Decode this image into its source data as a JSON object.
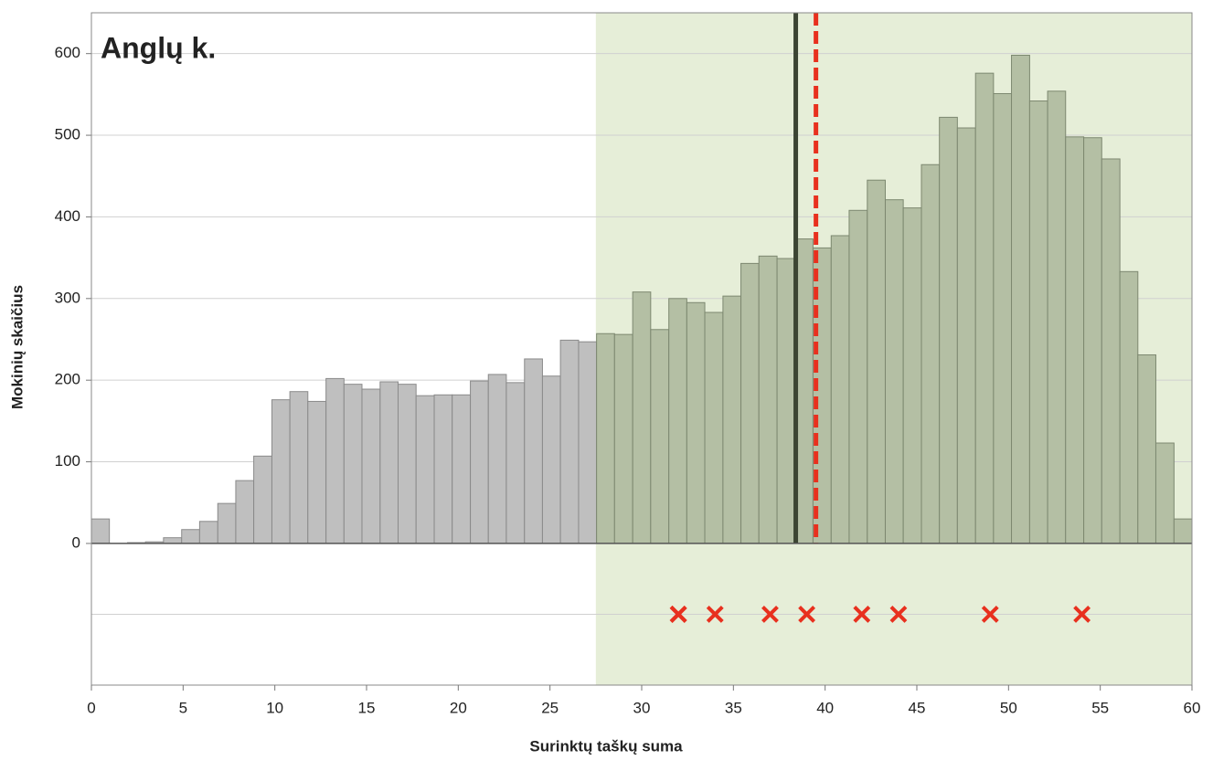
{
  "chart_data": {
    "type": "histogram",
    "title": "Anglų k.",
    "x_label": "Surinktų taškų suma",
    "y_label": "Mokinių skaičius",
    "bins": [
      0,
      0.98,
      1.97,
      2.95,
      3.93,
      4.92,
      5.9,
      6.89,
      7.87,
      8.85,
      9.84,
      10.82,
      11.8,
      12.79,
      13.77,
      14.75,
      15.74,
      16.72,
      17.7,
      18.69,
      19.67,
      20.66,
      21.64,
      22.62,
      23.61,
      24.59,
      25.57,
      26.56,
      27.54,
      28.52,
      29.51,
      30.49,
      31.48,
      32.46,
      33.44,
      34.43,
      35.41,
      36.39,
      37.38,
      38.36,
      39.34,
      40.33,
      41.31,
      42.3,
      43.28,
      44.26,
      45.25,
      46.23,
      47.21,
      48.2,
      49.18,
      50.16,
      51.15,
      52.13,
      53.11,
      54.1,
      55.08,
      56.07,
      57.05,
      58.03,
      59.02,
      60
    ],
    "values": [
      30,
      0,
      1,
      2,
      7,
      17,
      27,
      49,
      77,
      107,
      176,
      186,
      174,
      202,
      195,
      189,
      198,
      195,
      181,
      182,
      182,
      199,
      207,
      197,
      226,
      205,
      249,
      247,
      257,
      256,
      308,
      262,
      300,
      295,
      283,
      303,
      343,
      352,
      349,
      373,
      362,
      377,
      408,
      445,
      421,
      411,
      464,
      522,
      509,
      576,
      551,
      598,
      542,
      554,
      498,
      497,
      471,
      333,
      231,
      123,
      30
    ],
    "color": "#bfbfbf",
    "shade_xlim": [
      27.5,
      60
    ],
    "shade_color": "#e6eed8",
    "shade_bar_color": "#b4bfa4",
    "vlines": [
      {
        "x": 38.4,
        "color": "#3b4432",
        "style": "solid"
      },
      {
        "x": 39.5,
        "color": "#e8301e",
        "style": "dashed"
      }
    ],
    "markers": {
      "x": [
        32,
        32,
        32,
        34,
        37,
        39,
        42,
        44,
        49,
        54
      ],
      "color": "#e8301e"
    },
    "xlim": [
      0,
      60
    ],
    "xticks": [
      0,
      5,
      10,
      15,
      20,
      25,
      30,
      35,
      40,
      45,
      50,
      55,
      60
    ],
    "ylim": [
      -173.5,
      650
    ],
    "yticks": [
      0,
      100,
      200,
      300,
      400,
      500,
      600
    ],
    "grid": true
  }
}
